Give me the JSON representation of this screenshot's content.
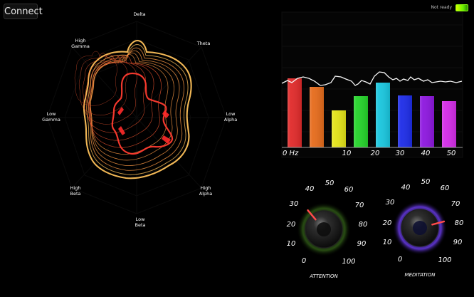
{
  "header": {
    "connect_label": "Connect",
    "status_text": "Not ready",
    "status_icon": "signal-strength-icon"
  },
  "radar": {
    "labels": [
      "Delta",
      "Theta",
      "Low Alpha",
      "High Alpha",
      "Low Beta",
      "High Beta",
      "Low Gamma",
      "High Gamma"
    ],
    "stroke_color_outer": "#ffb14a",
    "stroke_color_inner": "#ff3b2f"
  },
  "spectrum": {
    "axis_labels": [
      "0 Hz",
      "10",
      "20",
      "30",
      "40",
      "50"
    ],
    "bar_colors": [
      "#e12a2a",
      "#e66b1b",
      "#e3e317",
      "#24d42a",
      "#19c7df",
      "#1d2ce8",
      "#8d16df",
      "#d42be8"
    ],
    "bar_values": [
      0.82,
      0.72,
      0.44,
      0.61,
      0.77,
      0.62,
      0.61,
      0.55
    ],
    "line_color": "#f7f7f7"
  },
  "gauges": [
    {
      "name": "attention",
      "label": "ATTENTION",
      "ticks": [
        "0",
        "10",
        "20",
        "30",
        "40",
        "50",
        "60",
        "70",
        "80",
        "90",
        "100"
      ],
      "needle_value": 34,
      "glow_color": "#274b12",
      "needle_color": "#ff4b4b"
    },
    {
      "name": "meditation",
      "label": "MEDITATION",
      "ticks": [
        "0",
        "10",
        "20",
        "30",
        "40",
        "50",
        "60",
        "70",
        "80",
        "90",
        "100"
      ],
      "needle_value": 80,
      "glow_color": "#5a32c7",
      "needle_color": "#ff4b4b"
    }
  ]
}
